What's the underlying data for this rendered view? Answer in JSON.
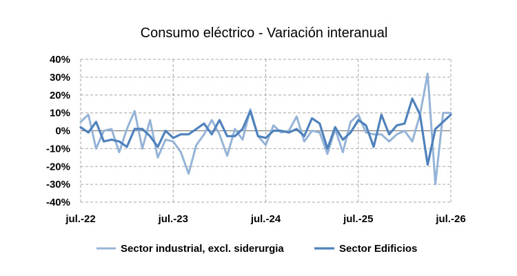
{
  "chart_data": {
    "type": "line",
    "title": "Consumo eléctrico -  Variación interanual",
    "xlabel": "",
    "ylabel": "",
    "ylim": [
      -40,
      40
    ],
    "yticks": [
      -40,
      -30,
      -20,
      -10,
      0,
      10,
      20,
      30,
      40
    ],
    "ytick_labels": [
      "-40%",
      "-30%",
      "-20%",
      "-10%",
      "0%",
      "10%",
      "20%",
      "30%",
      "40%"
    ],
    "x_range": [
      0,
      48
    ],
    "xticks": [
      {
        "index": 0,
        "label": "jul.-22"
      },
      {
        "index": 12,
        "label": "jul.-23"
      },
      {
        "index": 24,
        "label": "jul.-24"
      },
      {
        "index": 36,
        "label": "jul.-25"
      },
      {
        "index": 48,
        "label": "jul.-26"
      }
    ],
    "grid": true,
    "legend_position": "bottom",
    "series": [
      {
        "name": "Sector industrial, excl. siderurgia",
        "color": "#95b3d7",
        "values": [
          5,
          9,
          -10,
          0,
          1,
          -12,
          1,
          11,
          -10,
          6,
          -15,
          -5,
          -6,
          -12,
          -24,
          -8,
          -2,
          6,
          -2,
          -14,
          1,
          -5,
          12,
          -3,
          -8,
          3,
          -1,
          0,
          8,
          -6,
          0,
          -1,
          -13,
          1,
          -12,
          5,
          9,
          -1,
          -2,
          -2,
          -6,
          -2,
          0,
          -6,
          9,
          32,
          -30,
          10,
          10
        ]
      },
      {
        "name": "Sector Edificios",
        "color": "#4f81bd",
        "values": [
          2,
          -1,
          5,
          -6,
          -5,
          -6,
          -9,
          1,
          1,
          -3,
          -9,
          0,
          -4,
          -2,
          -2,
          1,
          4,
          -2,
          6,
          -3,
          -3,
          1,
          11,
          -3,
          -4,
          0,
          0,
          -1,
          1,
          -3,
          7,
          4,
          -10,
          2,
          -5,
          -1,
          6,
          3,
          -9,
          9,
          -2,
          3,
          4,
          18,
          9,
          -19,
          1,
          5,
          9
        ]
      }
    ]
  }
}
